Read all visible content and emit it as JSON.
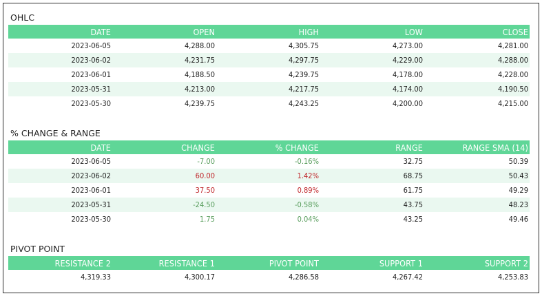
{
  "ohlc": {
    "title": "OHLC",
    "headers": [
      "DATE",
      "OPEN",
      "HIGH",
      "LOW",
      "CLOSE"
    ],
    "rows": [
      [
        "2023-06-05",
        "4,288.00",
        "4,305.75",
        "4,273.00",
        "4,281.00"
      ],
      [
        "2023-06-02",
        "4,231.75",
        "4,297.75",
        "4,229.00",
        "4,288.00"
      ],
      [
        "2023-06-01",
        "4,188.50",
        "4,239.75",
        "4,178.00",
        "4,228.00"
      ],
      [
        "2023-05-31",
        "4,213.00",
        "4,217.75",
        "4,174.00",
        "4,190.50"
      ],
      [
        "2023-05-30",
        "4,239.75",
        "4,243.25",
        "4,200.00",
        "4,215.00"
      ]
    ]
  },
  "change_range": {
    "title": "% CHANGE & RANGE",
    "headers": [
      "DATE",
      "CHANGE",
      "% CHANGE",
      "RANGE",
      "RANGE SMA (14)"
    ],
    "rows": [
      [
        "2023-06-05",
        "-7.00",
        "-0.16%",
        "32.75",
        "50.39"
      ],
      [
        "2023-06-02",
        "60.00",
        "1.42%",
        "68.75",
        "50.43"
      ],
      [
        "2023-06-01",
        "37.50",
        "0.89%",
        "61.75",
        "49.29"
      ],
      [
        "2023-05-31",
        "-24.50",
        "-0.58%",
        "43.75",
        "48.23"
      ],
      [
        "2023-05-30",
        "1.75",
        "0.04%",
        "43.25",
        "49.46"
      ]
    ],
    "row_tones": [
      "neg",
      "pos",
      "pos",
      "neg",
      "neg"
    ],
    "colors": {
      "negative": "#5a9e5e",
      "positive": "#c0282c"
    }
  },
  "pivot": {
    "title": "PIVOT POINT",
    "headers": [
      "RESISTANCE 2",
      "RESISTANCE 1",
      "PIVOT POINT",
      "SUPPORT 1",
      "SUPPORT 2"
    ],
    "rows": [
      [
        "4,319.33",
        "4,300.17",
        "4,286.58",
        "4,267.42",
        "4,253.83"
      ]
    ]
  },
  "colors": {
    "header_bg": "#5fd697",
    "stripe_bg": "#eaf8f0"
  }
}
